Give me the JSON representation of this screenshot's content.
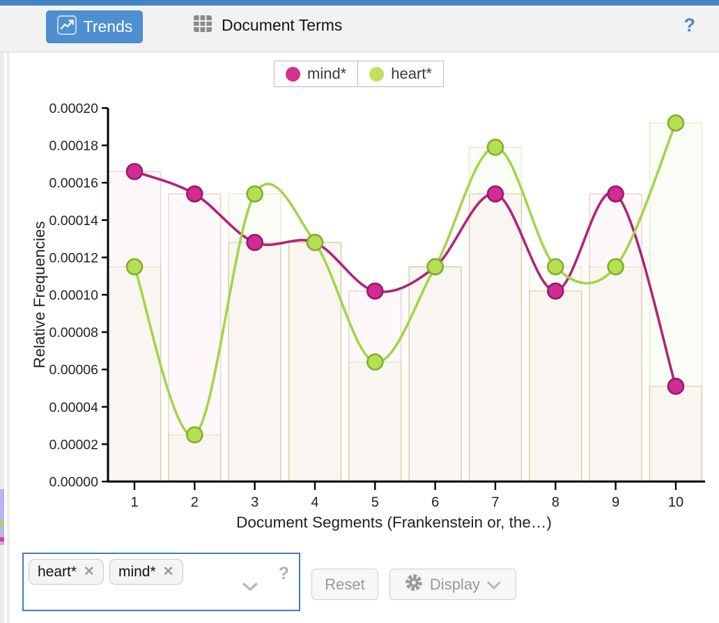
{
  "toolbar": {
    "trends_label": "Trends",
    "document_terms_label": "Document Terms",
    "help_label": "?"
  },
  "legend": {
    "items": [
      {
        "label": "mind*",
        "color": "#d6308f"
      },
      {
        "label": "heart*",
        "color": "#c3e05c"
      }
    ]
  },
  "chart_data": {
    "type": "line",
    "title": "",
    "x": [
      1,
      2,
      3,
      4,
      5,
      6,
      7,
      8,
      9,
      10
    ],
    "xlabel": "Document Segments (Frankenstein or, the…)",
    "ylabel": "Relative Frequencies",
    "ylim": [
      0,
      0.0002
    ],
    "ytick_step": 2e-05,
    "ytick_labels": [
      "0.00000",
      "0.00002",
      "0.00004",
      "0.00006",
      "0.00008",
      "0.00010",
      "0.00012",
      "0.00014",
      "0.00016",
      "0.00018",
      "0.00020"
    ],
    "grid": false,
    "legend_position": "top-center",
    "bars_behind_lines": true,
    "series": [
      {
        "name": "mind*",
        "line_color": "#b12379",
        "marker_fill": "#d32a93",
        "marker_stroke": "#951d68",
        "bar_fill": "rgba(213,45,146,0.035)",
        "bar_stroke": "rgba(196,130,110,0.35)",
        "values": [
          0.000166,
          0.000154,
          0.000128,
          0.000128,
          0.000102,
          0.000115,
          0.000154,
          0.000102,
          0.000154,
          5.1e-05
        ]
      },
      {
        "name": "heart*",
        "line_color": "#a2d546",
        "marker_fill": "#b5e051",
        "marker_stroke": "#85ad31",
        "bar_fill": "rgba(170,213,70,0.055)",
        "bar_stroke": "rgba(190,200,100,0.35)",
        "values": [
          0.000115,
          2.5e-05,
          0.000154,
          0.000128,
          6.4e-05,
          0.000115,
          0.000179,
          0.000115,
          0.000115,
          0.000192
        ]
      }
    ]
  },
  "controls": {
    "term_chips": [
      {
        "label": "heart*",
        "remove": "✕"
      },
      {
        "label": "mind*",
        "remove": "✕"
      }
    ],
    "help_label": "?",
    "reset_label": "Reset",
    "display_label": "Display"
  }
}
